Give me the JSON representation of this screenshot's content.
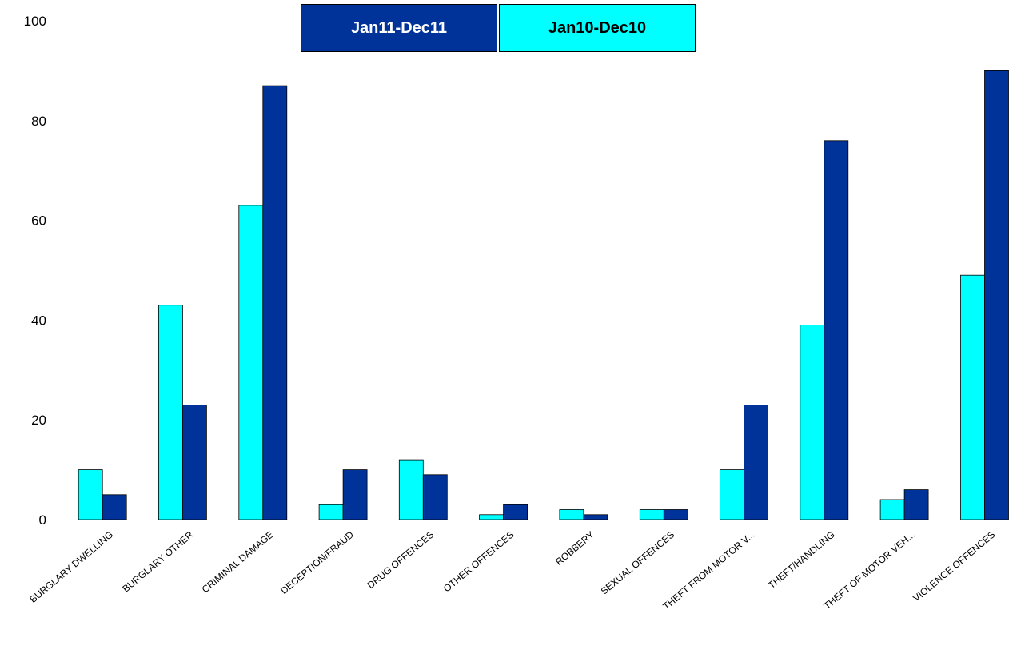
{
  "chart_data": {
    "type": "bar",
    "title": "",
    "xlabel": "",
    "ylabel": "",
    "ylim": [
      0,
      100
    ],
    "yticks": [
      0,
      20,
      40,
      60,
      80,
      100
    ],
    "grid": false,
    "legend_position": "top-center",
    "categories": [
      "BURGLARY DWELLING",
      "BURGLARY OTHER",
      "CRIMINAL DAMAGE",
      "DECEPTION/FRAUD",
      "DRUG OFFENCES",
      "OTHER OFFENCES",
      "ROBBERY",
      "SEXUAL OFFENCES",
      "THEFT FROM MOTOR V...",
      "THEFT/HANDLING",
      "THEFT OF MOTOR VEH...",
      "VIOLENCE OFFENCES"
    ],
    "series": [
      {
        "name": "Jan11-Dec11",
        "color": "#003399",
        "values": [
          5,
          23,
          87,
          10,
          9,
          3,
          1,
          2,
          23,
          76,
          6,
          90
        ]
      },
      {
        "name": "Jan10-Dec10",
        "color": "#00FFFF",
        "values": [
          10,
          43,
          63,
          3,
          12,
          1,
          2,
          2,
          10,
          39,
          4,
          49
        ]
      }
    ]
  }
}
